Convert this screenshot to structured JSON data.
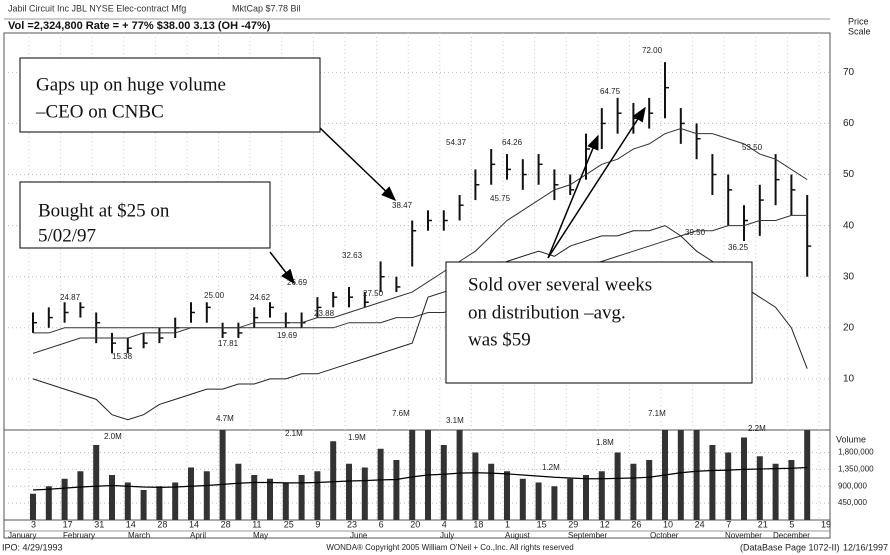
{
  "chart_data": {
    "type": "stock",
    "header": {
      "company": "Jabil Circuit Inc  JBL  NYSE  Elec-contract Mfg",
      "mktcap": "MktCap $7.78 Bil",
      "stats": "Vol =2,324,800   Rate = + 77%   $38.00   3.13 (OH -47%)"
    },
    "price_axis_title": [
      "Price",
      "Scale"
    ],
    "volume_axis_title": "Volume",
    "footer": {
      "ipo": "IPO: 4/29/1993",
      "copyright": "WONDA® Copyright 2005 William O'Neil + Co.,Inc. All rights reserved",
      "page": "(DataBase Page 1072-II)",
      "date": "12/16/1997"
    },
    "callouts": [
      {
        "lines": [
          "Gaps up on huge volume",
          "–CEO on CNBC"
        ]
      },
      {
        "lines": [
          "Bought at $25 on",
          "5/02/97"
        ]
      },
      {
        "lines": [
          "Sold over several weeks",
          "on distribution –avg.",
          "was $59"
        ]
      }
    ],
    "ylim": [
      0,
      77.7
    ],
    "yticks": [
      10,
      20,
      30,
      40,
      50,
      60,
      70
    ],
    "vol_ylim": [
      0,
      2400000
    ],
    "vol_ticks": [
      {
        "value": 1800000,
        "label": "1,800,000"
      },
      {
        "value": 1350000,
        "label": "1,350,000"
      },
      {
        "value": 900000,
        "label": "900,000"
      },
      {
        "value": 450000,
        "label": "450,000"
      }
    ],
    "date_ticks": [
      "3",
      "17",
      "31",
      "14",
      "28",
      "14",
      "28",
      "11",
      "25",
      "9",
      "23",
      "6",
      "20",
      "4",
      "18",
      "1",
      "15",
      "29",
      "12",
      "26",
      "10",
      "24",
      "7",
      "21",
      "5",
      "19"
    ],
    "months": [
      "January",
      "February",
      "March",
      "April",
      "May",
      "June",
      "July",
      "August",
      "September",
      "October",
      "November",
      "December"
    ],
    "high": [
      23,
      24,
      25,
      25,
      23,
      19,
      18,
      19,
      20,
      22,
      25,
      25,
      21,
      21,
      24,
      25,
      23,
      23,
      26,
      27,
      28,
      27,
      33,
      30,
      41,
      43,
      43,
      46,
      51,
      55,
      54,
      53,
      54,
      51,
      50,
      58,
      63,
      65,
      64,
      65,
      72,
      63,
      60,
      54,
      50,
      44,
      48,
      54,
      50,
      46
    ],
    "low": [
      19,
      20,
      21,
      22,
      17,
      15,
      15,
      16,
      17,
      18,
      21,
      21,
      18,
      18,
      20,
      22,
      20,
      20,
      22,
      24,
      24,
      24,
      27,
      27,
      32,
      39,
      39,
      41,
      45,
      48,
      49,
      47,
      48,
      45,
      46,
      49,
      55,
      58,
      58,
      59,
      61,
      56,
      53,
      46,
      40,
      37,
      38,
      44,
      42,
      30
    ],
    "close": [
      21,
      22,
      23,
      24,
      21,
      17,
      16,
      17,
      18,
      20,
      23,
      24,
      19,
      19,
      22,
      24,
      21,
      21,
      24,
      26,
      26,
      25,
      30,
      28,
      39,
      41,
      41,
      44,
      48,
      52,
      51,
      50,
      52,
      48,
      47,
      55,
      60,
      62,
      61,
      62,
      67,
      60,
      57,
      50,
      47,
      41,
      45,
      49,
      47,
      36
    ],
    "color": "#111111",
    "lines": [
      {
        "color": "#333333",
        "values": [
          15,
          16,
          17,
          18,
          18,
          18,
          18,
          19,
          19,
          19,
          20,
          20,
          20,
          20,
          21,
          21,
          21,
          21,
          22,
          22,
          23,
          24,
          25,
          26,
          27,
          29,
          31,
          33,
          35,
          38,
          41,
          43,
          45,
          47,
          48,
          50,
          52,
          53,
          55,
          56,
          58,
          59,
          58,
          58,
          57,
          56,
          54,
          53,
          51,
          49
        ]
      },
      {
        "color": "#333333",
        "values": [
          19,
          19,
          20,
          20,
          20,
          20,
          20,
          20,
          20,
          20,
          20,
          20,
          20,
          20,
          20,
          20,
          20,
          20,
          20,
          20,
          21,
          21,
          21,
          22,
          22,
          23,
          23,
          24,
          25,
          26,
          27,
          28,
          29,
          30,
          31,
          32,
          33,
          34,
          35,
          36,
          37,
          38,
          39,
          39,
          40,
          40,
          41,
          41,
          42,
          42
        ]
      },
      {
        "color": "#222222",
        "values": [
          10,
          9,
          8,
          7,
          6,
          3,
          2,
          3,
          5,
          6,
          7,
          8,
          8,
          9,
          9,
          10,
          10,
          11,
          11,
          12,
          13,
          14,
          15,
          16,
          17,
          26,
          27,
          28,
          30,
          31,
          33,
          34,
          35,
          34,
          36,
          37,
          38,
          38,
          39,
          39,
          40,
          38,
          35,
          33,
          30,
          28,
          26,
          24,
          20,
          12
        ]
      }
    ],
    "volume": [
      700000,
      900000,
      1100000,
      1300000,
      2000000,
      1200000,
      1000000,
      800000,
      900000,
      1000000,
      1400000,
      1300000,
      4700000,
      1500000,
      1200000,
      1100000,
      1000000,
      1200000,
      1300000,
      2100000,
      1500000,
      1400000,
      1900000,
      1600000,
      7600000,
      2500000,
      2000000,
      3100000,
      1800000,
      1500000,
      1300000,
      1100000,
      1000000,
      900000,
      1100000,
      1200000,
      1300000,
      1800000,
      1500000,
      1600000,
      7100000,
      3000000,
      2500000,
      2000000,
      1800000,
      2200000,
      1700000,
      1500000,
      1600000,
      2400000
    ],
    "volume_avg": [
      800000,
      820000,
      850000,
      880000,
      900000,
      920000,
      900000,
      880000,
      870000,
      880000,
      900000,
      920000,
      950000,
      980000,
      1000000,
      1000000,
      990000,
      990000,
      1000000,
      1020000,
      1040000,
      1050000,
      1070000,
      1080000,
      1150000,
      1200000,
      1220000,
      1250000,
      1260000,
      1250000,
      1230000,
      1200000,
      1170000,
      1140000,
      1120000,
      1100000,
      1100000,
      1110000,
      1120000,
      1140000,
      1200000,
      1260000,
      1300000,
      1320000,
      1330000,
      1350000,
      1360000,
      1370000,
      1380000,
      1400000
    ],
    "price_labels": [
      "24.87",
      "15.38",
      "25.00",
      "17.81",
      "24.62",
      "19.69",
      "26.69",
      "23.88",
      "32.63",
      "27.50",
      "38.47",
      "54.37",
      "64.26",
      "45.75",
      "64.75",
      "72.00",
      "53.50",
      "39.50",
      "36.25"
    ],
    "volume_labels": [
      "2.0M",
      "4.7M",
      "2.1M",
      "1.9M",
      "7.6M",
      "3.1M",
      "1.2M",
      "1.8M",
      "7.1M",
      "2.2M"
    ]
  }
}
